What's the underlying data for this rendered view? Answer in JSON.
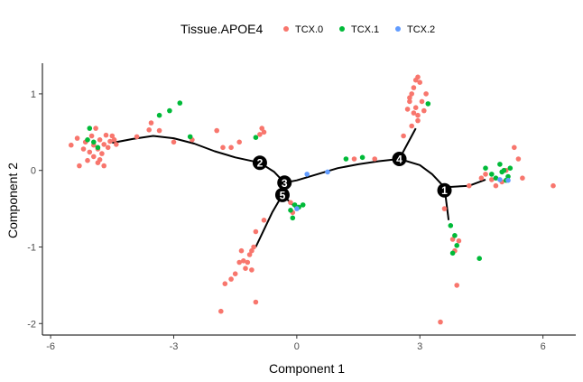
{
  "chart_data": {
    "type": "scatter",
    "xlabel": "Component 1",
    "ylabel": "Component 2",
    "xlim": [
      -6.2,
      6.8
    ],
    "ylim": [
      -2.15,
      1.4
    ],
    "x_ticks": [
      -6,
      -3,
      0,
      3,
      6
    ],
    "y_ticks": [
      -2,
      -1,
      0,
      1
    ],
    "grid": false,
    "legend": {
      "title": "Tissue.APOE4",
      "placement": "top",
      "entries": [
        "TCX.0",
        "TCX.1",
        "TCX.2"
      ]
    },
    "colors": {
      "TCX.0": "#F8766D",
      "TCX.1": "#00BA38",
      "TCX.2": "#619CFF"
    },
    "series": [
      {
        "name": "TCX.0",
        "points": [
          [
            -5.5,
            0.33
          ],
          [
            -5.35,
            0.42
          ],
          [
            -5.3,
            0.06
          ],
          [
            -5.2,
            0.28
          ],
          [
            -5.15,
            0.37
          ],
          [
            -5.1,
            0.13
          ],
          [
            -5.05,
            0.24
          ],
          [
            -5.0,
            0.45
          ],
          [
            -4.95,
            0.18
          ],
          [
            -4.95,
            0.33
          ],
          [
            -4.9,
            0.55
          ],
          [
            -4.85,
            0.1
          ],
          [
            -4.85,
            0.28
          ],
          [
            -4.8,
            0.4
          ],
          [
            -4.75,
            0.22
          ],
          [
            -4.7,
            0.34
          ],
          [
            -4.7,
            0.06
          ],
          [
            -4.65,
            0.46
          ],
          [
            -4.6,
            0.3
          ],
          [
            -4.55,
            0.38
          ],
          [
            -4.5,
            0.45
          ],
          [
            -4.45,
            0.4
          ],
          [
            -4.4,
            0.34
          ],
          [
            -4.8,
            0.14
          ],
          [
            -3.9,
            0.44
          ],
          [
            -3.6,
            0.53
          ],
          [
            -3.55,
            0.62
          ],
          [
            -3.35,
            0.52
          ],
          [
            -3.0,
            0.37
          ],
          [
            -2.55,
            0.4
          ],
          [
            -1.95,
            0.52
          ],
          [
            -1.8,
            0.3
          ],
          [
            -1.6,
            0.3
          ],
          [
            -1.4,
            0.37
          ],
          [
            -0.9,
            0.47
          ],
          [
            -0.85,
            0.55
          ],
          [
            -0.8,
            0.5
          ],
          [
            -0.9,
            0.1
          ],
          [
            -0.8,
            -0.65
          ],
          [
            -1.0,
            -0.8
          ],
          [
            -1.05,
            -1.0
          ],
          [
            -1.1,
            -1.05
          ],
          [
            -1.15,
            -1.1
          ],
          [
            -1.2,
            -1.2
          ],
          [
            -1.25,
            -1.28
          ],
          [
            -1.3,
            -1.18
          ],
          [
            -1.35,
            -1.05
          ],
          [
            -1.4,
            -1.2
          ],
          [
            -1.5,
            -1.35
          ],
          [
            -1.6,
            -1.42
          ],
          [
            -1.75,
            -1.48
          ],
          [
            -1.85,
            -1.84
          ],
          [
            -1.0,
            -1.72
          ],
          [
            -1.1,
            -1.3
          ],
          [
            -0.15,
            -0.42
          ],
          [
            -0.1,
            -0.55
          ],
          [
            1.4,
            0.15
          ],
          [
            1.9,
            0.15
          ],
          [
            2.6,
            0.45
          ],
          [
            2.7,
            0.8
          ],
          [
            2.75,
            0.9
          ],
          [
            2.8,
            1.0
          ],
          [
            2.85,
            1.08
          ],
          [
            2.9,
            1.18
          ],
          [
            2.95,
            1.22
          ],
          [
            3.0,
            1.15
          ],
          [
            2.9,
            0.82
          ],
          [
            2.85,
            0.75
          ],
          [
            2.95,
            0.72
          ],
          [
            2.8,
            0.58
          ],
          [
            2.95,
            0.65
          ],
          [
            3.1,
            0.78
          ],
          [
            3.05,
            0.9
          ],
          [
            3.15,
            1.0
          ],
          [
            2.75,
            0.95
          ],
          [
            3.5,
            -1.98
          ],
          [
            3.6,
            -0.5
          ],
          [
            3.8,
            -0.9
          ],
          [
            3.85,
            -1.05
          ],
          [
            3.9,
            -1.5
          ],
          [
            3.95,
            -0.92
          ],
          [
            4.2,
            -0.2
          ],
          [
            4.5,
            -0.1
          ],
          [
            4.6,
            -0.05
          ],
          [
            4.75,
            -0.12
          ],
          [
            4.85,
            -0.2
          ],
          [
            5.0,
            -0.15
          ],
          [
            5.1,
            0.0
          ],
          [
            5.3,
            0.3
          ],
          [
            5.4,
            0.15
          ],
          [
            5.5,
            -0.1
          ],
          [
            6.25,
            -0.2
          ]
        ]
      },
      {
        "name": "TCX.1",
        "points": [
          [
            -5.05,
            0.55
          ],
          [
            -4.95,
            0.37
          ],
          [
            -5.1,
            0.4
          ],
          [
            -4.85,
            0.3
          ],
          [
            -3.35,
            0.72
          ],
          [
            -3.1,
            0.78
          ],
          [
            -2.85,
            0.88
          ],
          [
            -2.6,
            0.44
          ],
          [
            -1.0,
            0.43
          ],
          [
            -0.15,
            -0.52
          ],
          [
            -0.05,
            -0.45
          ],
          [
            0.05,
            -0.48
          ],
          [
            0.15,
            -0.45
          ],
          [
            -0.1,
            -0.62
          ],
          [
            1.2,
            0.15
          ],
          [
            1.6,
            0.17
          ],
          [
            2.5,
            0.2
          ],
          [
            3.2,
            0.87
          ],
          [
            3.8,
            -1.08
          ],
          [
            3.85,
            -0.85
          ],
          [
            3.9,
            -0.98
          ],
          [
            3.75,
            -0.72
          ],
          [
            4.45,
            -1.15
          ],
          [
            4.6,
            0.03
          ],
          [
            4.75,
            -0.05
          ],
          [
            4.85,
            -0.1
          ],
          [
            4.95,
            0.08
          ],
          [
            5.0,
            -0.02
          ],
          [
            5.05,
            0.0
          ],
          [
            5.15,
            -0.08
          ],
          [
            5.2,
            0.03
          ],
          [
            5.1,
            -0.13
          ]
        ]
      },
      {
        "name": "TCX.2",
        "points": [
          [
            0.25,
            -0.05
          ],
          [
            0.75,
            -0.02
          ],
          [
            0.0,
            -0.5
          ],
          [
            4.95,
            -0.12
          ],
          [
            5.15,
            -0.13
          ]
        ]
      }
    ],
    "trajectory": [
      [
        [
          -4.5,
          0.36
        ],
        [
          -4.0,
          0.41
        ],
        [
          -3.5,
          0.45
        ],
        [
          -3.0,
          0.42
        ],
        [
          -2.5,
          0.35
        ],
        [
          -2.0,
          0.25
        ],
        [
          -1.5,
          0.17
        ],
        [
          -0.9,
          0.1
        ],
        [
          -0.55,
          -0.02
        ],
        [
          -0.3,
          -0.16
        ],
        [
          0.0,
          -0.13
        ],
        [
          0.5,
          -0.05
        ],
        [
          1.0,
          0.03
        ],
        [
          1.5,
          0.08
        ],
        [
          2.0,
          0.12
        ],
        [
          2.5,
          0.15
        ],
        [
          3.0,
          0.07
        ],
        [
          3.3,
          -0.05
        ],
        [
          3.6,
          -0.22
        ],
        [
          4.2,
          -0.2
        ],
        [
          4.6,
          -0.12
        ]
      ],
      [
        [
          2.5,
          0.15
        ],
        [
          2.9,
          0.55
        ]
      ],
      [
        [
          3.6,
          -0.22
        ],
        [
          3.7,
          -0.65
        ]
      ],
      [
        [
          -0.3,
          -0.16
        ],
        [
          -0.35,
          -0.32
        ],
        [
          -0.6,
          -0.55
        ],
        [
          -1.0,
          -1.0
        ]
      ],
      [
        [
          -0.35,
          -0.32
        ],
        [
          0.0,
          -0.5
        ]
      ]
    ],
    "branch_points": [
      {
        "label": "1",
        "x": 3.6,
        "y": -0.26
      },
      {
        "label": "2",
        "x": -0.9,
        "y": 0.1
      },
      {
        "label": "3",
        "x": -0.3,
        "y": -0.16
      },
      {
        "label": "4",
        "x": 2.5,
        "y": 0.15
      },
      {
        "label": "5",
        "x": -0.35,
        "y": -0.32
      }
    ]
  }
}
